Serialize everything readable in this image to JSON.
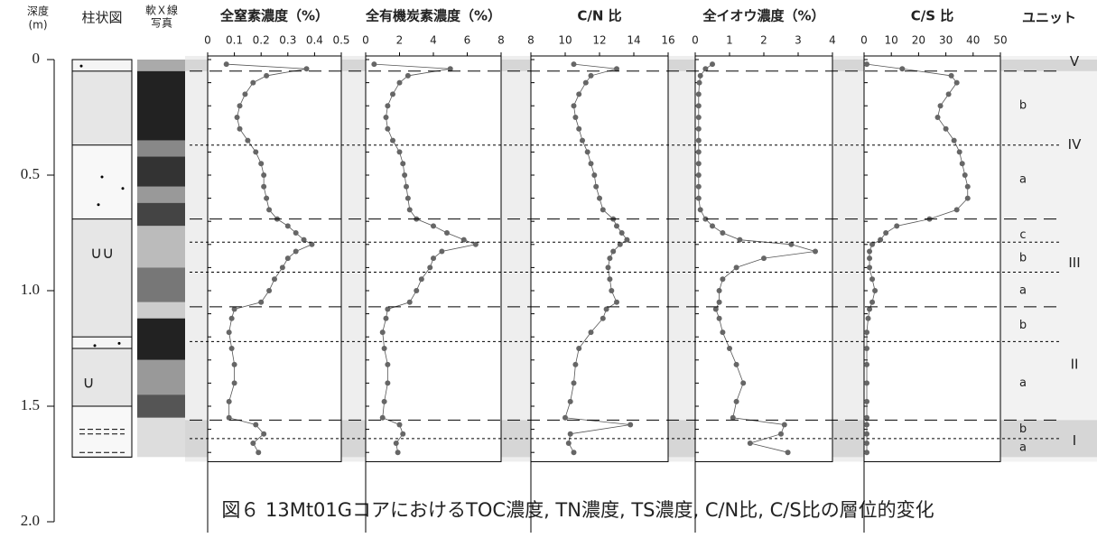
{
  "depth_axis": {
    "label": "深度",
    "unit": "(m)",
    "ylim": [
      0,
      2
    ],
    "yticks": [
      0,
      0.5,
      {
        "value": 1,
        "label": "1.0"
      },
      1.5,
      {
        "value": 2,
        "label": "2.0"
      }
    ]
  },
  "column_headers": {
    "lithology": "柱状図",
    "xray_line1": "軟Ｘ線",
    "xray_line2": "写真",
    "unit": "ユニット"
  },
  "lithology_symbols": [
    "∪∪",
    "∪"
  ],
  "boundaries": {
    "dashed": [
      0.05,
      0.69,
      1.07,
      1.56
    ],
    "dotted": [
      0.37,
      0.79,
      0.92,
      1.22,
      1.64
    ]
  },
  "units": {
    "main": [
      "V",
      "IV",
      "III",
      "II",
      "I"
    ],
    "sub": [
      "b",
      "a",
      "c",
      "b",
      "a",
      "b",
      "a",
      "b",
      "a"
    ]
  },
  "caption": "図６ 13Mt01GコアにおけるTOC濃度, TN濃度, TS濃度, C/N比, C/S比の層位的変化",
  "chart_data": [
    {
      "type": "line",
      "title": "全窒素濃度（%）",
      "color": "#666666",
      "depth": [
        0.02,
        0.04,
        0.07,
        0.1,
        0.15,
        0.2,
        0.25,
        0.3,
        0.35,
        0.4,
        0.45,
        0.5,
        0.55,
        0.6,
        0.65,
        0.69,
        0.72,
        0.75,
        0.78,
        0.8,
        0.83,
        0.86,
        0.9,
        0.95,
        1.0,
        1.05,
        1.08,
        1.12,
        1.18,
        1.25,
        1.32,
        1.4,
        1.48,
        1.55,
        1.58,
        1.62,
        1.66,
        1.7
      ],
      "values": [
        0.07,
        0.37,
        0.22,
        0.17,
        0.14,
        0.12,
        0.11,
        0.12,
        0.15,
        0.18,
        0.2,
        0.21,
        0.21,
        0.22,
        0.23,
        0.26,
        0.3,
        0.33,
        0.36,
        0.39,
        0.33,
        0.3,
        0.28,
        0.25,
        0.23,
        0.2,
        0.1,
        0.09,
        0.08,
        0.09,
        0.1,
        0.1,
        0.08,
        0.08,
        0.18,
        0.21,
        0.17,
        0.19
      ],
      "xlim": [
        0,
        0.5
      ],
      "xticks": [
        0,
        0.1,
        0.2,
        0.3,
        0.4,
        0.5
      ]
    },
    {
      "type": "line",
      "title": "全有機炭素濃度（%）",
      "color": "#666666",
      "depth": [
        0.02,
        0.04,
        0.07,
        0.1,
        0.15,
        0.2,
        0.25,
        0.3,
        0.35,
        0.4,
        0.45,
        0.5,
        0.55,
        0.6,
        0.65,
        0.69,
        0.72,
        0.75,
        0.78,
        0.8,
        0.83,
        0.86,
        0.9,
        0.95,
        1.0,
        1.05,
        1.08,
        1.12,
        1.18,
        1.25,
        1.32,
        1.4,
        1.48,
        1.55,
        1.58,
        1.62,
        1.66,
        1.7
      ],
      "values": [
        0.5,
        5.0,
        2.5,
        2.0,
        1.6,
        1.3,
        1.2,
        1.3,
        1.6,
        2.0,
        2.2,
        2.3,
        2.4,
        2.5,
        2.6,
        3.0,
        4.0,
        4.8,
        5.8,
        6.5,
        4.5,
        4.0,
        3.8,
        3.3,
        3.0,
        2.6,
        1.3,
        1.2,
        1.0,
        1.1,
        1.3,
        1.3,
        1.1,
        1.0,
        2.0,
        2.2,
        1.8,
        1.9
      ],
      "xlim": [
        0,
        8
      ],
      "xticks": [
        0,
        2,
        4,
        6,
        8
      ]
    },
    {
      "type": "line",
      "title": "C/N 比",
      "color": "#666666",
      "depth": [
        0.02,
        0.04,
        0.07,
        0.1,
        0.15,
        0.2,
        0.25,
        0.3,
        0.35,
        0.4,
        0.45,
        0.5,
        0.55,
        0.6,
        0.65,
        0.69,
        0.72,
        0.75,
        0.78,
        0.8,
        0.83,
        0.86,
        0.9,
        0.95,
        1.0,
        1.05,
        1.08,
        1.12,
        1.18,
        1.25,
        1.32,
        1.4,
        1.48,
        1.55,
        1.58,
        1.62,
        1.66,
        1.7
      ],
      "values": [
        10.5,
        13,
        11.5,
        11.2,
        10.8,
        10.5,
        10.6,
        10.8,
        11.0,
        11.3,
        11.5,
        11.7,
        11.8,
        12.0,
        12.2,
        12.8,
        13.0,
        13.3,
        13.6,
        13.2,
        12.8,
        12.6,
        12.5,
        12.6,
        12.7,
        13.0,
        12.4,
        12.2,
        11.5,
        10.8,
        10.6,
        10.5,
        10.3,
        10.0,
        13.8,
        10.3,
        10.2,
        10.5
      ],
      "xlim": [
        8,
        16
      ],
      "xticks": [
        8,
        10,
        12,
        14,
        16
      ]
    },
    {
      "type": "line",
      "title": "全イオウ濃度（%）",
      "color": "#666666",
      "depth": [
        0.02,
        0.04,
        0.07,
        0.1,
        0.15,
        0.2,
        0.25,
        0.3,
        0.35,
        0.4,
        0.45,
        0.5,
        0.55,
        0.6,
        0.65,
        0.69,
        0.72,
        0.75,
        0.78,
        0.8,
        0.83,
        0.86,
        0.9,
        0.95,
        1.0,
        1.05,
        1.08,
        1.12,
        1.18,
        1.25,
        1.32,
        1.4,
        1.48,
        1.55,
        1.58,
        1.62,
        1.66,
        1.7
      ],
      "values": [
        0.5,
        0.3,
        0.15,
        0.12,
        0.1,
        0.1,
        0.1,
        0.1,
        0.1,
        0.1,
        0.1,
        0.1,
        0.1,
        0.1,
        0.15,
        0.3,
        0.5,
        0.8,
        1.3,
        2.8,
        3.5,
        2.0,
        1.2,
        0.8,
        0.7,
        0.7,
        0.6,
        0.7,
        0.8,
        1.0,
        1.2,
        1.4,
        1.2,
        1.1,
        2.6,
        2.5,
        1.6,
        2.7
      ],
      "xlim": [
        0,
        4
      ],
      "xticks": [
        0,
        1,
        2,
        3,
        4
      ]
    },
    {
      "type": "line",
      "title": "C/S 比",
      "color": "#666666",
      "depth": [
        0.02,
        0.04,
        0.07,
        0.1,
        0.15,
        0.2,
        0.25,
        0.3,
        0.35,
        0.4,
        0.45,
        0.5,
        0.55,
        0.6,
        0.65,
        0.69,
        0.72,
        0.75,
        0.78,
        0.8,
        0.83,
        0.86,
        0.9,
        0.95,
        1.0,
        1.05,
        1.08,
        1.12,
        1.18,
        1.25,
        1.32,
        1.4,
        1.48,
        1.55,
        1.58,
        1.62,
        1.66,
        1.7
      ],
      "values": [
        1,
        14,
        32,
        34,
        31,
        28,
        27,
        30,
        33,
        35,
        36,
        37,
        38,
        38,
        34,
        24,
        12,
        8,
        6,
        3,
        2,
        2,
        2,
        3,
        4,
        3,
        2,
        1.5,
        1,
        1,
        1,
        1,
        1,
        1,
        1,
        1,
        1,
        1
      ],
      "xlim": [
        0,
        50
      ],
      "xticks": [
        0,
        10,
        20,
        30,
        40,
        50
      ]
    }
  ]
}
